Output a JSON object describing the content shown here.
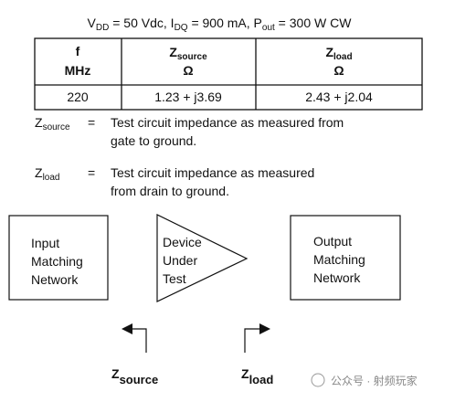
{
  "condition": [
    {
      "text": "V"
    },
    {
      "sub": "DD"
    },
    {
      "text": " = 50 Vdc, I"
    },
    {
      "sub": "DQ"
    },
    {
      "text": " = 900 mA, P"
    },
    {
      "sub": "out"
    },
    {
      "text": " = 300 W CW"
    }
  ],
  "table": {
    "header": [
      {
        "symbol": "f",
        "unit": "MHz"
      },
      {
        "symbol": "Z",
        "sub": "source",
        "unit": "Ω"
      },
      {
        "symbol": "Z",
        "sub": "load",
        "unit": "Ω"
      }
    ],
    "rows": [
      [
        "220",
        "1.23 + j3.69",
        "2.43 + j2.04"
      ]
    ]
  },
  "notes": [
    {
      "symbol": "Z",
      "sub": "source",
      "eq": "=",
      "lines": [
        "Test circuit impedance as measured from",
        "gate to ground."
      ]
    },
    {
      "symbol": "Z",
      "sub": "load",
      "eq": "=",
      "lines": [
        "Test circuit impedance as measured",
        "from drain to ground."
      ]
    }
  ],
  "diagram": {
    "input": [
      "Input",
      "Matching",
      "Network"
    ],
    "device": [
      "Device",
      "Under",
      "Test"
    ],
    "output": [
      "Output",
      "Matching",
      "Network"
    ],
    "labels": [
      {
        "symbol": "Z",
        "sub": "source"
      },
      {
        "symbol": "Z",
        "sub": "load"
      }
    ]
  },
  "watermark": "公众号 · 射频玩家"
}
